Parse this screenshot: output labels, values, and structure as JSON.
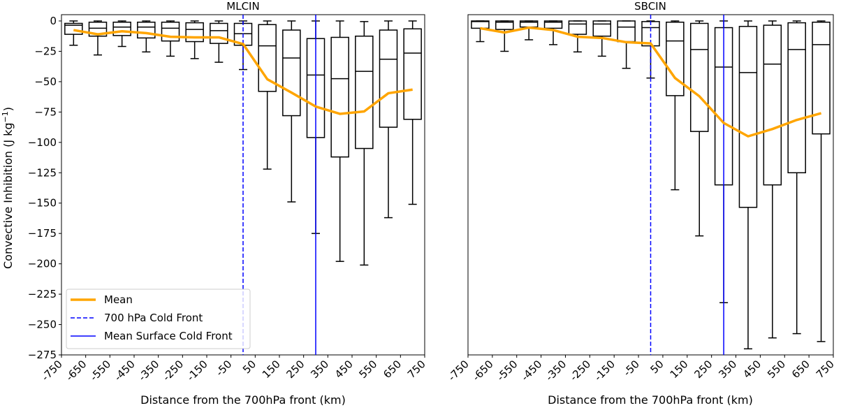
{
  "chart_data": [
    {
      "type": "box",
      "title": "MLCIN",
      "xlabel": "Distance from the 700hPa front (km)",
      "ylabel": "Convective Inhibition (J kg⁻¹)",
      "xlim": [
        -750,
        750
      ],
      "ylim": [
        -275,
        5
      ],
      "xticks": [
        "-750",
        "-650",
        "-550",
        "-450",
        "-350",
        "-250",
        "-150",
        "-50",
        "50",
        "150",
        "250",
        "350",
        "450",
        "550",
        "650",
        "750"
      ],
      "yticks": [
        0,
        -25,
        -50,
        -75,
        -100,
        -125,
        -150,
        -175,
        -200,
        -225,
        -250,
        -275
      ],
      "ytick_labels": [
        "0",
        "−25",
        "−50",
        "−75",
        "−100",
        "−125",
        "−150",
        "−175",
        "−200",
        "−225",
        "−250",
        "−275"
      ],
      "positions": [
        -700,
        -600,
        -500,
        -400,
        -300,
        -200,
        -100,
        0,
        100,
        200,
        300,
        400,
        500,
        600,
        700
      ],
      "boxes": [
        {
          "whisker_high": 0,
          "q3": -2,
          "median": -3.5,
          "q1": -11,
          "whisker_low": -20
        },
        {
          "whisker_high": 0,
          "q3": -1,
          "median": -6,
          "q1": -12.5,
          "whisker_low": -28
        },
        {
          "whisker_high": 0,
          "q3": -1,
          "median": -5,
          "q1": -12,
          "whisker_low": -21
        },
        {
          "whisker_high": 0,
          "q3": -1,
          "median": -5,
          "q1": -14,
          "whisker_low": -25.5
        },
        {
          "whisker_high": 0,
          "q3": -1,
          "median": -6,
          "q1": -16.5,
          "whisker_low": -29
        },
        {
          "whisker_high": 0,
          "q3": -1.5,
          "median": -7,
          "q1": -17,
          "whisker_low": -31
        },
        {
          "whisker_high": 0,
          "q3": -2,
          "median": -8,
          "q1": -18.5,
          "whisker_low": -34
        },
        {
          "whisker_high": 0,
          "q3": -2,
          "median": -10.5,
          "q1": -20,
          "whisker_low": -40
        },
        {
          "whisker_high": 0,
          "q3": -3,
          "median": -20.5,
          "q1": -58,
          "whisker_low": -122
        },
        {
          "whisker_high": 0,
          "q3": -7.5,
          "median": -30.5,
          "q1": -78,
          "whisker_low": -149
        },
        {
          "whisker_high": 0,
          "q3": -14.5,
          "median": -44.5,
          "q1": -96,
          "whisker_low": -175
        },
        {
          "whisker_high": 0,
          "q3": -13.5,
          "median": -47.5,
          "q1": -112,
          "whisker_low": -198
        },
        {
          "whisker_high": -0.5,
          "q3": -12.5,
          "median": -41.5,
          "q1": -105,
          "whisker_low": -201
        },
        {
          "whisker_high": 0,
          "q3": -7.5,
          "median": -31.5,
          "q1": -87.5,
          "whisker_low": -162
        },
        {
          "whisker_high": 0,
          "q3": -6.5,
          "median": -26.5,
          "q1": -81,
          "whisker_low": -151
        }
      ],
      "mean": [
        -7.5,
        -11,
        -8.5,
        -10,
        -13,
        -13.5,
        -13.5,
        -19,
        -48,
        -59,
        -70.5,
        -76.5,
        -74.5,
        -59.5,
        -56.5
      ],
      "vlines": [
        {
          "x": 0,
          "style": "dashed",
          "color": "#0000ff",
          "label": "700 hPa Cold Front"
        },
        {
          "x": 300,
          "style": "solid",
          "color": "#0000ff",
          "label": "Mean Surface Cold Front"
        }
      ],
      "mean_color": "#ffa500",
      "legend": {
        "placement": "lower-left",
        "entries": [
          {
            "label": "Mean",
            "style": "solid-thick",
            "color": "#ffa500"
          },
          {
            "label": "700 hPa Cold Front",
            "style": "dashed",
            "color": "#0000ff"
          },
          {
            "label": "Mean Surface Cold Front",
            "style": "solid",
            "color": "#0000ff"
          }
        ]
      }
    },
    {
      "type": "box",
      "title": "SBCIN",
      "xlabel": "Distance from the 700hPa front (km)",
      "ylabel": "",
      "xlim": [
        -750,
        750
      ],
      "ylim": [
        -275,
        5
      ],
      "xticks": [
        "-750",
        "-650",
        "-550",
        "-450",
        "-350",
        "-250",
        "-150",
        "-50",
        "50",
        "150",
        "250",
        "350",
        "450",
        "550",
        "650",
        "750"
      ],
      "positions": [
        -700,
        -600,
        -500,
        -400,
        -300,
        -200,
        -100,
        0,
        100,
        200,
        300,
        400,
        500,
        600,
        700
      ],
      "boxes": [
        {
          "whisker_high": 0,
          "q3": 0,
          "median": -0.5,
          "q1": -6,
          "whisker_low": -17
        },
        {
          "whisker_high": 0,
          "q3": 0,
          "median": -1,
          "q1": -7,
          "whisker_low": -25
        },
        {
          "whisker_high": 0,
          "q3": 0,
          "median": -1,
          "q1": -5,
          "whisker_low": -15.5
        },
        {
          "whisker_high": 0,
          "q3": 0,
          "median": -1,
          "q1": -6,
          "whisker_low": -19.5
        },
        {
          "whisker_high": 0,
          "q3": 0,
          "median": -2.5,
          "q1": -11,
          "whisker_low": -25.5
        },
        {
          "whisker_high": 0,
          "q3": 0,
          "median": -2.5,
          "q1": -12.5,
          "whisker_low": -29
        },
        {
          "whisker_high": 0,
          "q3": 0,
          "median": -5,
          "q1": -17,
          "whisker_low": -39
        },
        {
          "whisker_high": 0,
          "q3": -0.5,
          "median": -5.5,
          "q1": -20.5,
          "whisker_low": -47
        },
        {
          "whisker_high": 0,
          "q3": -1,
          "median": -16.5,
          "q1": -61.5,
          "whisker_low": -139
        },
        {
          "whisker_high": 0,
          "q3": -2,
          "median": -23.5,
          "q1": -91,
          "whisker_low": -177
        },
        {
          "whisker_high": 0,
          "q3": -5.5,
          "median": -38,
          "q1": -135,
          "whisker_low": -232
        },
        {
          "whisker_high": 0,
          "q3": -4.5,
          "median": -42.5,
          "q1": -153.5,
          "whisker_low": -270
        },
        {
          "whisker_high": 0,
          "q3": -3.5,
          "median": -35.5,
          "q1": -135,
          "whisker_low": -261
        },
        {
          "whisker_high": 0,
          "q3": -1.5,
          "median": -23.5,
          "q1": -125,
          "whisker_low": -257.5
        },
        {
          "whisker_high": 0,
          "q3": -1,
          "median": -19.5,
          "q1": -93,
          "whisker_low": -264
        }
      ],
      "mean": [
        -6,
        -9.5,
        -5.5,
        -7.5,
        -13,
        -14,
        -17.5,
        -18.5,
        -47,
        -62,
        -84,
        -95,
        -89,
        -81.5,
        -76
      ],
      "vlines": [
        {
          "x": 0,
          "style": "dashed",
          "color": "#0000ff",
          "label": "700 hPa Cold Front"
        },
        {
          "x": 300,
          "style": "solid",
          "color": "#0000ff",
          "label": "Mean Surface Cold Front"
        }
      ],
      "mean_color": "#ffa500"
    }
  ]
}
